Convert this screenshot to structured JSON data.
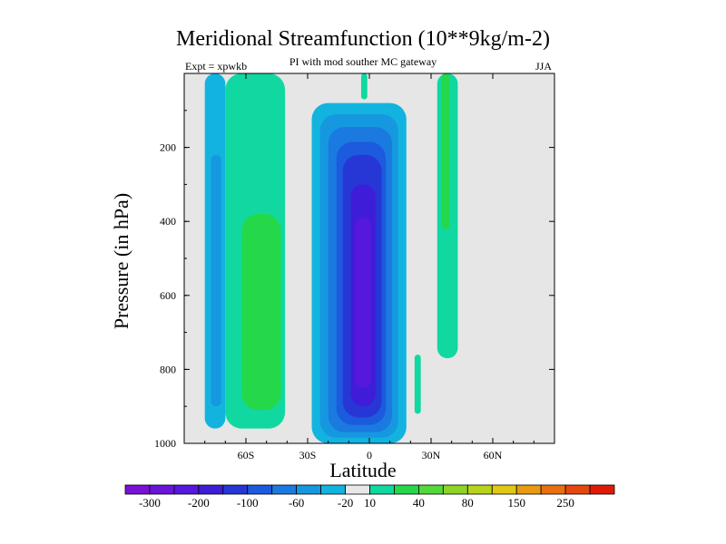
{
  "chart_data": {
    "type": "contour",
    "title": "Meridional Streamfunction (10**9kg/m-2)",
    "subtitle": "PI with mod souther MC gateway",
    "left_annotation": "Expt = xpwkb",
    "right_annotation": "JJA",
    "xlabel": "Latitude",
    "ylabel": "Pressure (in hPa)",
    "xlim": [
      -90,
      90
    ],
    "ylim": [
      1000,
      0
    ],
    "x_ticks": [
      {
        "value": -60,
        "label": "60S"
      },
      {
        "value": -30,
        "label": "30S"
      },
      {
        "value": 0,
        "label": "0"
      },
      {
        "value": 30,
        "label": "30N"
      },
      {
        "value": 60,
        "label": "60N"
      }
    ],
    "y_ticks": [
      {
        "value": 200,
        "label": "200"
      },
      {
        "value": 400,
        "label": "400"
      },
      {
        "value": 600,
        "label": "600"
      },
      {
        "value": 800,
        "label": "800"
      },
      {
        "value": 1000,
        "label": "1000"
      }
    ],
    "background_color": "#e6e6e6",
    "colorbar": {
      "colors": [
        "#7a11d6",
        "#6a14da",
        "#5518dc",
        "#3f1cd8",
        "#2637d6",
        "#1c5ade",
        "#1a7ae0",
        "#1698e0",
        "#12b4df",
        "#e8e8e8",
        "#10d8a0",
        "#24d84a",
        "#52d83a",
        "#8ed428",
        "#b8d41a",
        "#e0c814",
        "#e89a10",
        "#e8700e",
        "#e5480c",
        "#e01a0a"
      ],
      "labels": [
        {
          "boundary": 1,
          "text": "-300"
        },
        {
          "boundary": 3,
          "text": "-200"
        },
        {
          "boundary": 5,
          "text": "-100"
        },
        {
          "boundary": 7,
          "text": "-60"
        },
        {
          "boundary": 9,
          "text": "-20"
        },
        {
          "boundary": 10,
          "text": "10"
        },
        {
          "boundary": 12,
          "text": "40"
        },
        {
          "boundary": 14,
          "text": "80"
        },
        {
          "boundary": 16,
          "text": "150"
        },
        {
          "boundary": 18,
          "text": "250"
        }
      ]
    },
    "regions": [
      {
        "name": "sh-polar-cell-outer",
        "color_index": 8,
        "lat": [
          -80,
          -70
        ],
        "p": [
          0,
          960
        ]
      },
      {
        "name": "sh-polar-cell-inner",
        "color_index": 7,
        "lat": [
          -77,
          -72
        ],
        "p": [
          220,
          900
        ]
      },
      {
        "name": "sh-ferrel-cell-outer",
        "color_index": 10,
        "lat": [
          -70,
          -41
        ],
        "p": [
          0,
          960
        ]
      },
      {
        "name": "sh-ferrel-cell-inner",
        "color_index": 11,
        "lat": [
          -62,
          -43
        ],
        "p": [
          380,
          910
        ]
      },
      {
        "name": "hadley-cell-1",
        "color_index": 8,
        "lat": [
          -28,
          18
        ],
        "p": [
          80,
          1000
        ]
      },
      {
        "name": "hadley-cell-2",
        "color_index": 7,
        "lat": [
          -24,
          14
        ],
        "p": [
          110,
          985
        ]
      },
      {
        "name": "hadley-cell-3",
        "color_index": 6,
        "lat": [
          -20,
          11
        ],
        "p": [
          145,
          970
        ]
      },
      {
        "name": "hadley-cell-4",
        "color_index": 5,
        "lat": [
          -16,
          8
        ],
        "p": [
          185,
          950
        ]
      },
      {
        "name": "hadley-cell-5",
        "color_index": 4,
        "lat": [
          -13,
          6
        ],
        "p": [
          220,
          930
        ]
      },
      {
        "name": "hadley-cell-6",
        "color_index": 3,
        "lat": [
          -9,
          3
        ],
        "p": [
          300,
          900
        ]
      },
      {
        "name": "hadley-cell-7",
        "color_index": 2,
        "lat": [
          -7,
          1
        ],
        "p": [
          390,
          850
        ]
      },
      {
        "name": "nh-streak",
        "color_index": 10,
        "lat": [
          33,
          43
        ],
        "p": [
          0,
          770
        ]
      },
      {
        "name": "nh-streak-inner",
        "color_index": 11,
        "lat": [
          35,
          39
        ],
        "p": [
          0,
          420
        ]
      },
      {
        "name": "eq-upper-filament",
        "color_index": 10,
        "lat": [
          -4,
          -1
        ],
        "p": [
          0,
          70
        ]
      },
      {
        "name": "nh-lower-filament",
        "color_index": 10,
        "lat": [
          22,
          25
        ],
        "p": [
          760,
          920
        ]
      }
    ]
  }
}
